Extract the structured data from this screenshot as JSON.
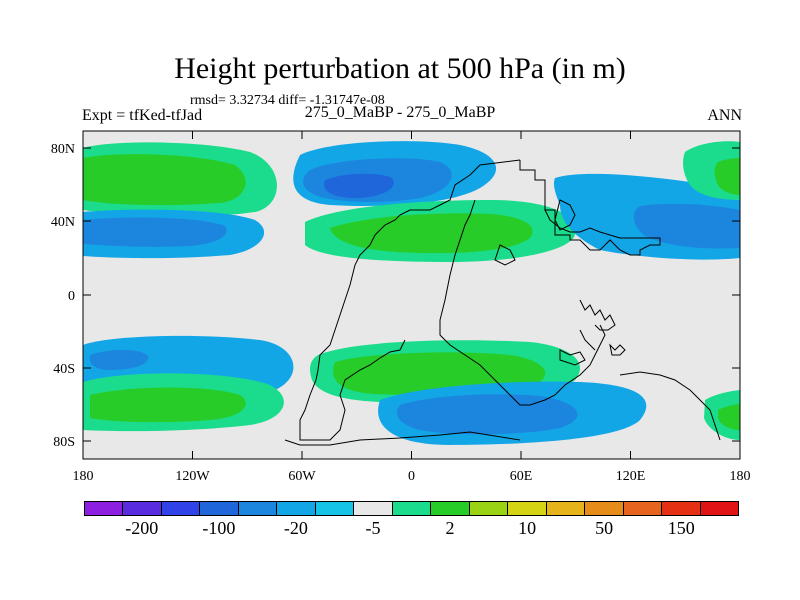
{
  "title": "Height perturbation at 500 hPa (in m)",
  "stats": "rmsd= 3.32734 diff= -1.31747e-08",
  "experiment": "Expt = tfKed-tfJad",
  "center_label": "275_0_MaBP - 275_0_MaBP",
  "season": "ANN",
  "axes": {
    "lat_ticks": [
      "80N",
      "40N",
      "0",
      "40S",
      "80S"
    ],
    "lon_ticks": [
      "180",
      "120W",
      "60W",
      "0",
      "60E",
      "120E",
      "180"
    ]
  },
  "colors": {
    "background_field": "#e8e8e8",
    "contour_line": "#000000"
  },
  "colorbar": {
    "colors": [
      "#8c1fe0",
      "#5a2ce0",
      "#2f43e6",
      "#1f66db",
      "#1c86de",
      "#13a6e6",
      "#14c3e6",
      "#e8e8e8",
      "#1adc8c",
      "#28cc28",
      "#9ad214",
      "#d4d414",
      "#e6b41a",
      "#e68c1a",
      "#e6641e",
      "#e63014",
      "#e01414"
    ],
    "labels": [
      "-200",
      "-100",
      "-20",
      "-5",
      "2",
      "10",
      "50",
      "150"
    ]
  },
  "fill_palette": {
    "very_light_blue": "#14c3e6",
    "light_blue": "#13a6e6",
    "mid_blue": "#1c86de",
    "dark_blue": "#1f66db",
    "light_green": "#1adc8c",
    "mid_green": "#28cc28"
  }
}
